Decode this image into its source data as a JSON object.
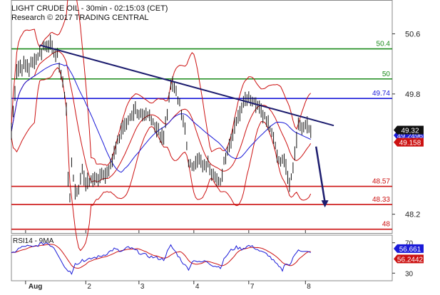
{
  "header": {
    "line1": "LIGHT CRUDE OIL - 30min - 02:15:03 (CET)",
    "line2": "Research © 2017 TRADING CENTRAL"
  },
  "chart_data": [
    {
      "type": "line",
      "panel": "price",
      "title": "LIGHT CRUDE OIL - 30min - 02:15:03 (CET)",
      "subtitle": "Research © 2017 TRADING CENTRAL",
      "ylim": [
        47.95,
        51.05
      ],
      "y_ticks": [
        50.6,
        49.8,
        48.2
      ],
      "y_tick_labels": [
        "50.6",
        "49.8",
        "48.2"
      ],
      "x_ticks": [
        "Aug",
        "2",
        "3",
        "4",
        "7",
        "8"
      ],
      "x_tick_index": [
        8,
        42,
        72,
        103,
        134,
        166
      ],
      "x_index_range": [
        0,
        215
      ],
      "grid": false,
      "levels": [
        {
          "label": "50.4",
          "value": 50.4,
          "color": "#1a8a1a"
        },
        {
          "label": "50",
          "value": 50.0,
          "color": "#1a8a1a"
        },
        {
          "label": "49.74",
          "value": 49.74,
          "color": "#1a1ad8"
        },
        {
          "label": "48.57",
          "value": 48.57,
          "color": "#cc1111"
        },
        {
          "label": "48.33",
          "value": 48.33,
          "color": "#cc1111"
        },
        {
          "label": "48",
          "value": 48.0,
          "color": "#cc1111"
        }
      ],
      "trendline": {
        "from": [
          16,
          50.45
        ],
        "to": [
          182,
          49.38
        ],
        "color": "#1c1c6e"
      },
      "projection_arrow": {
        "from": [
          172,
          49.1
        ],
        "to": [
          177,
          48.3
        ],
        "color": "#1c1c6e"
      },
      "price_path": [
        [
          0,
          49.3
        ],
        [
          3,
          50.1
        ],
        [
          7,
          50.2
        ],
        [
          10,
          50.15
        ],
        [
          14,
          50.28
        ],
        [
          18,
          50.42
        ],
        [
          22,
          50.45
        ],
        [
          26,
          50.3
        ],
        [
          29,
          49.95
        ],
        [
          31,
          49.6
        ],
        [
          32,
          48.7
        ],
        [
          33,
          48.4
        ],
        [
          34,
          48.9
        ],
        [
          36,
          48.5
        ],
        [
          38,
          48.55
        ],
        [
          40,
          48.8
        ],
        [
          42,
          48.6
        ],
        [
          46,
          48.65
        ],
        [
          50,
          48.7
        ],
        [
          54,
          48.75
        ],
        [
          58,
          49.0
        ],
        [
          62,
          49.3
        ],
        [
          66,
          49.45
        ],
        [
          70,
          49.6
        ],
        [
          74,
          49.5
        ],
        [
          78,
          49.5
        ],
        [
          82,
          49.35
        ],
        [
          86,
          49.2
        ],
        [
          88,
          49.55
        ],
        [
          90,
          49.95
        ],
        [
          92,
          49.9
        ],
        [
          95,
          49.65
        ],
        [
          98,
          49.3
        ],
        [
          100,
          48.9
        ],
        [
          102,
          48.8
        ],
        [
          105,
          48.95
        ],
        [
          108,
          48.85
        ],
        [
          111,
          48.85
        ],
        [
          115,
          48.7
        ],
        [
          118,
          48.6
        ],
        [
          120,
          48.9
        ],
        [
          123,
          49.1
        ],
        [
          126,
          49.4
        ],
        [
          128,
          49.5
        ],
        [
          131,
          49.7
        ],
        [
          134,
          49.75
        ],
        [
          137,
          49.7
        ],
        [
          140,
          49.6
        ],
        [
          144,
          49.45
        ],
        [
          147,
          49.3
        ],
        [
          150,
          49.0
        ],
        [
          152,
          48.9
        ],
        [
          154,
          48.95
        ],
        [
          157,
          48.6
        ],
        [
          159,
          48.8
        ],
        [
          161,
          49.2
        ],
        [
          162,
          49.4
        ],
        [
          164,
          49.35
        ],
        [
          167,
          49.38
        ],
        [
          169,
          49.32
        ]
      ],
      "series": [
        {
          "name": "",
          "color": "#1a1ad8",
          "last_value": 49.2496,
          "last_label": "49.2496"
        },
        {
          "name": "",
          "color": "#cc1111",
          "last_value": 49.158,
          "last_label": "49.158"
        },
        {
          "name": "",
          "color": "#111111",
          "last_value": 49.32,
          "last_label": "49.32"
        }
      ]
    },
    {
      "type": "line",
      "panel": "rsi",
      "label": "RSI14 - 9MA",
      "ylim": [
        20,
        80
      ],
      "y_ticks": [
        70,
        30
      ],
      "y_tick_labels": [
        "70",
        "30"
      ],
      "series": [
        {
          "name": "RSI14",
          "color": "#1a1ad8",
          "last_value": 56.661,
          "last_label": "56.661"
        },
        {
          "name": "9MA",
          "color": "#cc1111",
          "last_value": 56.2442,
          "last_label": "56.2442"
        }
      ],
      "rsi_path": [
        [
          0,
          55
        ],
        [
          4,
          62
        ],
        [
          8,
          66
        ],
        [
          12,
          64
        ],
        [
          16,
          68
        ],
        [
          20,
          70
        ],
        [
          24,
          64
        ],
        [
          28,
          48
        ],
        [
          30,
          38
        ],
        [
          32,
          34
        ],
        [
          34,
          30
        ],
        [
          36,
          44
        ],
        [
          38,
          42
        ],
        [
          40,
          48
        ],
        [
          42,
          46
        ],
        [
          46,
          50
        ],
        [
          50,
          52
        ],
        [
          54,
          56
        ],
        [
          58,
          62
        ],
        [
          62,
          58
        ],
        [
          66,
          64
        ],
        [
          70,
          60
        ],
        [
          74,
          55
        ],
        [
          78,
          52
        ],
        [
          82,
          50
        ],
        [
          86,
          48
        ],
        [
          88,
          58
        ],
        [
          90,
          66
        ],
        [
          92,
          60
        ],
        [
          95,
          50
        ],
        [
          98,
          40
        ],
        [
          100,
          36
        ],
        [
          103,
          48
        ],
        [
          106,
          44
        ],
        [
          110,
          46
        ],
        [
          114,
          40
        ],
        [
          118,
          38
        ],
        [
          121,
          52
        ],
        [
          124,
          60
        ],
        [
          127,
          64
        ],
        [
          130,
          62
        ],
        [
          134,
          66
        ],
        [
          137,
          64
        ],
        [
          141,
          58
        ],
        [
          145,
          54
        ],
        [
          148,
          46
        ],
        [
          151,
          38
        ],
        [
          153,
          34
        ],
        [
          155,
          44
        ],
        [
          157,
          40
        ],
        [
          160,
          54
        ],
        [
          162,
          62
        ],
        [
          165,
          58
        ],
        [
          169,
          57
        ]
      ]
    }
  ]
}
